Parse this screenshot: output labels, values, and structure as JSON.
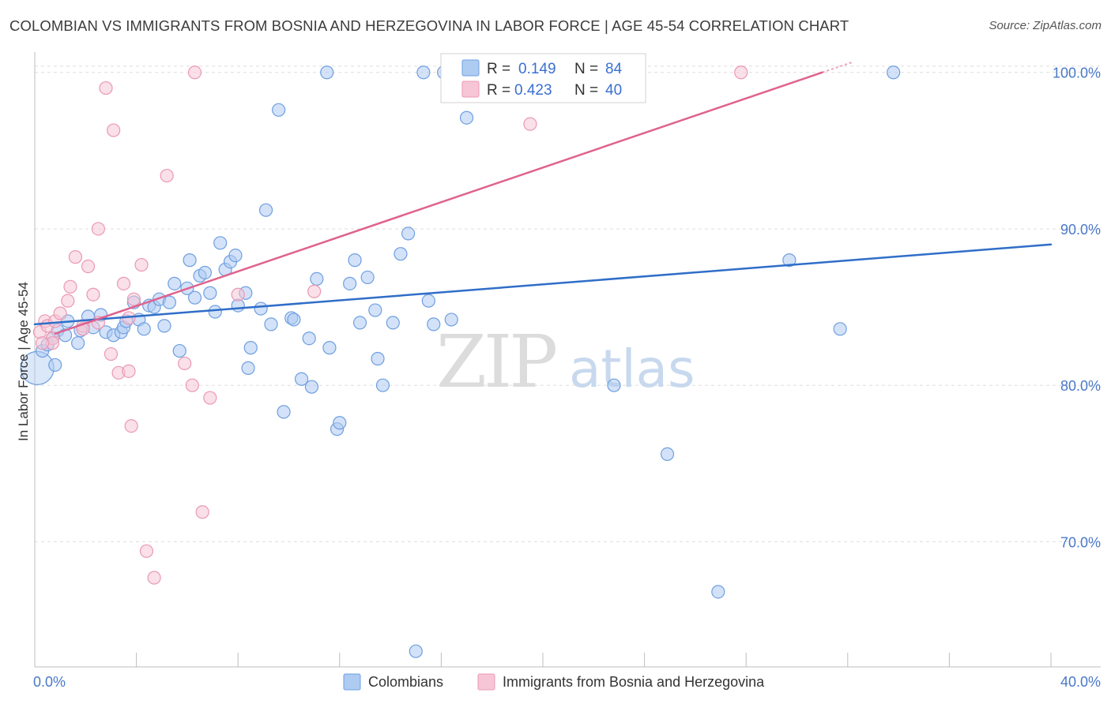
{
  "title": "COLOMBIAN VS IMMIGRANTS FROM BOSNIA AND HERZEGOVINA IN LABOR FORCE | AGE 45-54 CORRELATION CHART",
  "source": "Source: ZipAtlas.com",
  "watermark": {
    "zip": "ZIP",
    "atlas": "atlas"
  },
  "chart_data": {
    "type": "scatter",
    "title": "COLOMBIAN VS IMMIGRANTS FROM BOSNIA AND HERZEGOVINA IN LABOR FORCE | AGE 45-54 CORRELATION CHART",
    "ylabel": "In Labor Force | Age 45-54",
    "xlim": [
      0,
      40
    ],
    "ylim": [
      62,
      101.5
    ],
    "x_tick_labels": [
      "0.0%",
      "40.0%"
    ],
    "y_ticks": [
      {
        "value": 70,
        "label": "70.0%"
      },
      {
        "value": 80,
        "label": "80.0%"
      },
      {
        "value": 90,
        "label": "90.0%"
      },
      {
        "value": 100,
        "label": "100.0%"
      }
    ],
    "grid": true,
    "legend_position": "bottom-center",
    "stats": [
      {
        "r_label": "R =",
        "r": "0.149",
        "n_label": "N =",
        "n": "84"
      },
      {
        "r_label": "R =",
        "r": "0.423",
        "n_label": "N =",
        "n": "40"
      }
    ],
    "series": [
      {
        "name": "Colombians",
        "color": "#6e9fe0",
        "fill": "#aecbf2",
        "trend_color": "#2f6ec8",
        "trend": {
          "x": [
            0,
            40
          ],
          "y": [
            83.9,
            89.0
          ]
        },
        "points": [
          [
            0.1,
            81.1
          ],
          [
            0.3,
            82.2
          ],
          [
            0.5,
            82.6
          ],
          [
            0.7,
            83.0
          ],
          [
            0.8,
            81.3
          ],
          [
            0.9,
            83.5
          ],
          [
            1.2,
            83.2
          ],
          [
            1.3,
            84.1
          ],
          [
            1.7,
            82.7
          ],
          [
            1.8,
            83.5
          ],
          [
            2.1,
            84.4
          ],
          [
            2.3,
            83.7
          ],
          [
            2.6,
            84.5
          ],
          [
            2.8,
            83.4
          ],
          [
            3.1,
            83.2
          ],
          [
            3.4,
            83.4
          ],
          [
            3.5,
            83.7
          ],
          [
            3.6,
            84.1
          ],
          [
            3.9,
            85.3
          ],
          [
            4.1,
            84.2
          ],
          [
            4.3,
            83.6
          ],
          [
            4.5,
            85.1
          ],
          [
            4.7,
            85.0
          ],
          [
            4.9,
            85.5
          ],
          [
            5.1,
            83.8
          ],
          [
            5.3,
            85.3
          ],
          [
            5.5,
            86.5
          ],
          [
            5.7,
            82.2
          ],
          [
            6.0,
            86.2
          ],
          [
            6.1,
            88.0
          ],
          [
            6.3,
            85.6
          ],
          [
            6.5,
            87.0
          ],
          [
            6.7,
            87.2
          ],
          [
            6.9,
            85.9
          ],
          [
            7.1,
            84.7
          ],
          [
            7.3,
            89.1
          ],
          [
            7.5,
            87.4
          ],
          [
            7.7,
            87.9
          ],
          [
            7.9,
            88.3
          ],
          [
            8.0,
            85.1
          ],
          [
            8.3,
            85.9
          ],
          [
            8.4,
            81.1
          ],
          [
            8.5,
            82.4
          ],
          [
            8.9,
            84.9
          ],
          [
            9.1,
            91.2
          ],
          [
            9.3,
            83.9
          ],
          [
            9.6,
            97.6
          ],
          [
            9.8,
            78.3
          ],
          [
            10.1,
            84.3
          ],
          [
            10.2,
            84.2
          ],
          [
            10.5,
            80.4
          ],
          [
            10.8,
            83.0
          ],
          [
            10.9,
            79.9
          ],
          [
            11.1,
            86.8
          ],
          [
            11.5,
            100.0
          ],
          [
            11.6,
            82.4
          ],
          [
            11.9,
            77.2
          ],
          [
            12.0,
            77.6
          ],
          [
            12.4,
            86.5
          ],
          [
            12.6,
            88.0
          ],
          [
            12.8,
            84.0
          ],
          [
            13.1,
            86.9
          ],
          [
            13.4,
            84.8
          ],
          [
            13.5,
            81.7
          ],
          [
            13.7,
            80.0
          ],
          [
            14.1,
            84.0
          ],
          [
            14.4,
            88.4
          ],
          [
            14.7,
            89.7
          ],
          [
            15.0,
            63.0
          ],
          [
            15.3,
            100.0
          ],
          [
            15.5,
            85.4
          ],
          [
            15.7,
            83.9
          ],
          [
            16.1,
            100.0
          ],
          [
            16.4,
            84.2
          ],
          [
            17.0,
            97.1
          ],
          [
            18.1,
            100.0
          ],
          [
            22.5,
            100.0
          ],
          [
            22.8,
            80.0
          ],
          [
            24.9,
            75.6
          ],
          [
            26.9,
            66.8
          ],
          [
            29.7,
            88.0
          ],
          [
            31.7,
            83.6
          ],
          [
            33.8,
            100.0
          ],
          [
            16.3,
            100.0
          ]
        ]
      },
      {
        "name": "Immigrants from Bosnia and Herzegovina",
        "color": "#eb98b4",
        "fill": "#f6c6d6",
        "trend_color": "#e0628e",
        "trend": {
          "x": [
            0.8,
            31.0
          ],
          "y": [
            83.3,
            100.0
          ]
        },
        "points": [
          [
            0.2,
            83.4
          ],
          [
            0.4,
            84.1
          ],
          [
            0.5,
            83.8
          ],
          [
            0.7,
            83.0
          ],
          [
            0.7,
            82.7
          ],
          [
            0.8,
            84.1
          ],
          [
            1.0,
            84.6
          ],
          [
            1.3,
            85.4
          ],
          [
            1.4,
            86.3
          ],
          [
            1.6,
            88.2
          ],
          [
            1.9,
            83.8
          ],
          [
            2.1,
            87.6
          ],
          [
            2.3,
            85.8
          ],
          [
            2.5,
            90.0
          ],
          [
            2.8,
            99.0
          ],
          [
            3.0,
            82.0
          ],
          [
            3.1,
            96.3
          ],
          [
            3.3,
            80.8
          ],
          [
            3.5,
            86.5
          ],
          [
            3.7,
            80.9
          ],
          [
            3.8,
            77.4
          ],
          [
            3.9,
            85.5
          ],
          [
            4.2,
            87.7
          ],
          [
            4.4,
            69.4
          ],
          [
            4.7,
            67.7
          ],
          [
            5.2,
            93.4
          ],
          [
            5.9,
            81.4
          ],
          [
            6.2,
            80.0
          ],
          [
            6.3,
            100.0
          ],
          [
            6.6,
            71.9
          ],
          [
            6.9,
            79.2
          ],
          [
            8.0,
            85.8
          ],
          [
            11.0,
            86.0
          ],
          [
            17.3,
            100.0
          ],
          [
            19.5,
            96.7
          ],
          [
            27.8,
            100.0
          ],
          [
            2.5,
            84.0
          ],
          [
            3.7,
            84.3
          ],
          [
            1.9,
            83.6
          ],
          [
            0.3,
            82.7
          ]
        ]
      }
    ]
  }
}
